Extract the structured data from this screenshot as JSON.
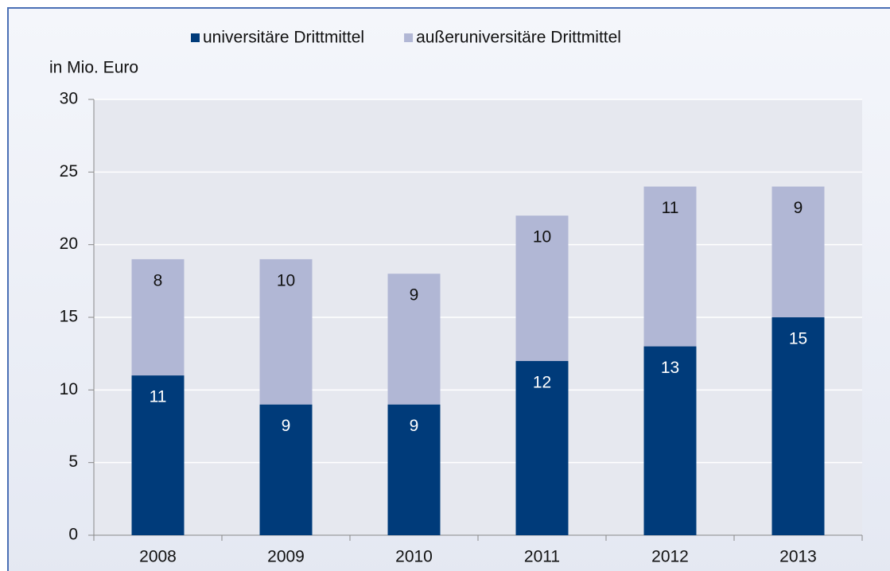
{
  "chart_data": {
    "type": "stacked_bar",
    "y_label": "in Mio. Euro",
    "categories": [
      "2008",
      "2009",
      "2010",
      "2011",
      "2012",
      "2013"
    ],
    "series": [
      {
        "name": "universitäre Drittmittel",
        "color": "#003b7a",
        "values": [
          11,
          9,
          9,
          12,
          13,
          15
        ]
      },
      {
        "name": "außeruniversitäre Drittmittel",
        "color": "#b1b7d5",
        "values": [
          8,
          10,
          9,
          10,
          11,
          9
        ]
      }
    ],
    "ylim": [
      0,
      30
    ],
    "yticks": [
      0,
      5,
      10,
      15,
      20,
      25,
      30
    ],
    "grid": true,
    "legend": "top"
  }
}
